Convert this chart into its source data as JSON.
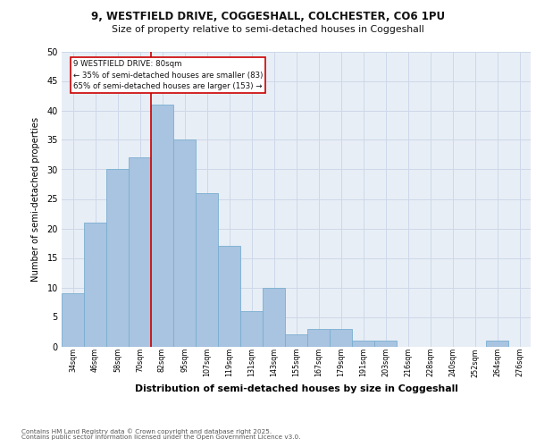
{
  "title_line1": "9, WESTFIELD DRIVE, COGGESHALL, COLCHESTER, CO6 1PU",
  "title_line2": "Size of property relative to semi-detached houses in Coggeshall",
  "xlabel": "Distribution of semi-detached houses by size in Coggeshall",
  "ylabel": "Number of semi-detached properties",
  "categories": [
    "34sqm",
    "46sqm",
    "58sqm",
    "70sqm",
    "82sqm",
    "95sqm",
    "107sqm",
    "119sqm",
    "131sqm",
    "143sqm",
    "155sqm",
    "167sqm",
    "179sqm",
    "191sqm",
    "203sqm",
    "216sqm",
    "228sqm",
    "240sqm",
    "252sqm",
    "264sqm",
    "276sqm"
  ],
  "values": [
    9,
    21,
    30,
    32,
    41,
    35,
    26,
    17,
    6,
    10,
    2,
    3,
    3,
    1,
    1,
    0,
    0,
    0,
    0,
    1,
    0
  ],
  "bar_color": "#a8c4e0",
  "bar_edge_color": "#7aaed0",
  "property_label": "9 WESTFIELD DRIVE: 80sqm",
  "pct_smaller": 35,
  "pct_larger": 65,
  "n_smaller": 83,
  "n_larger": 153,
  "vline_x_index": 3.5,
  "annotation_box_edge": "#cc0000",
  "vline_color": "#cc0000",
  "grid_color": "#cdd8e8",
  "bg_color": "#e8eef6",
  "ylim": [
    0,
    50
  ],
  "yticks": [
    0,
    5,
    10,
    15,
    20,
    25,
    30,
    35,
    40,
    45,
    50
  ],
  "footer": "Contains HM Land Registry data © Crown copyright and database right 2025.\nContains public sector information licensed under the Open Government Licence v3.0."
}
